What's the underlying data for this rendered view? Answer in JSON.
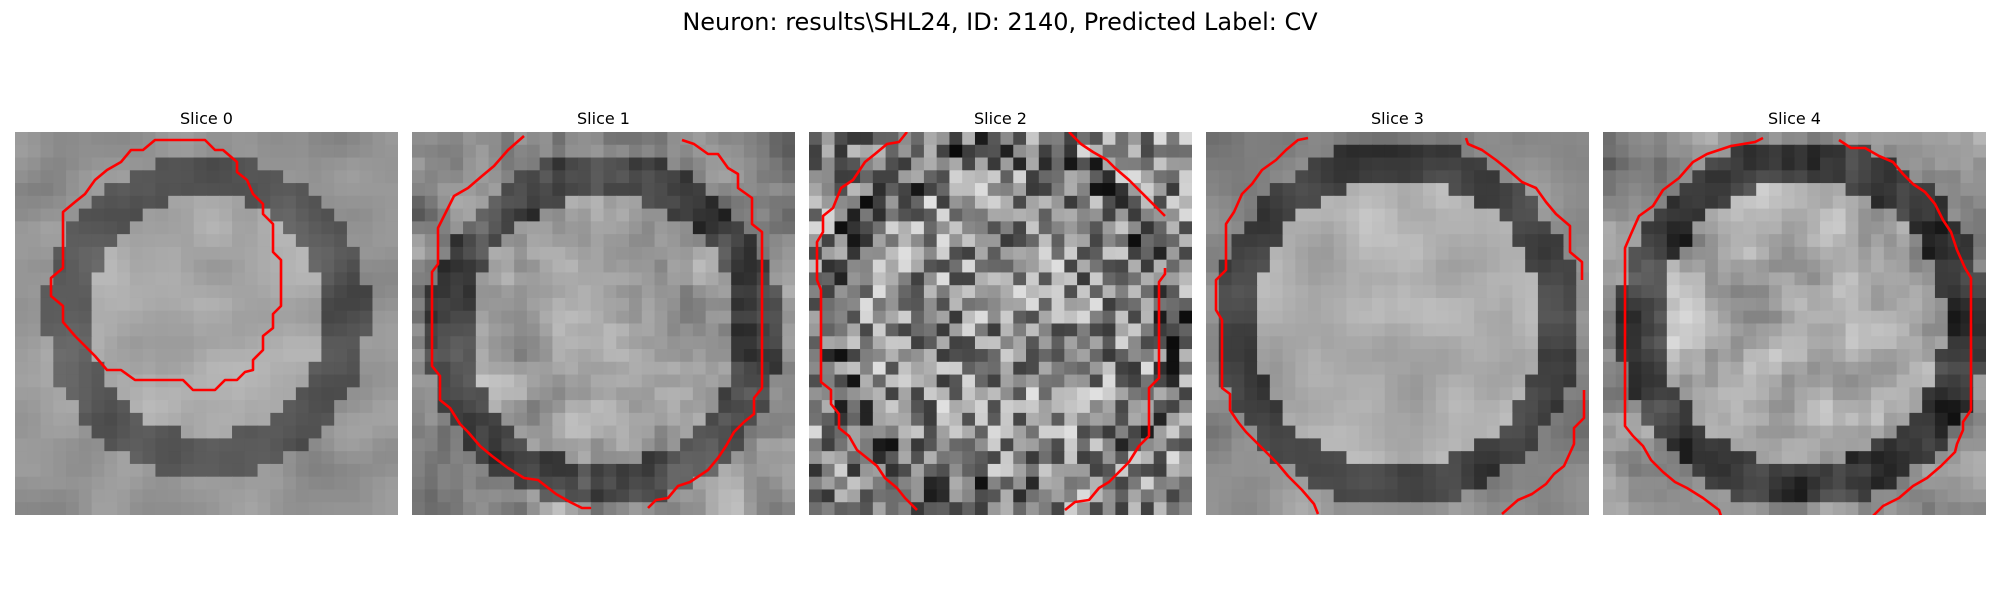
{
  "figure": {
    "title": "Neuron: results\\SHL24, ID: 2140, Predicted Label: CV"
  },
  "slices": [
    {
      "title": "Slice 0"
    },
    {
      "title": "Slice 1"
    },
    {
      "title": "Slice 2"
    },
    {
      "title": "Slice 3"
    },
    {
      "title": "Slice 4"
    }
  ],
  "colors": {
    "contour": "#ff0000",
    "background": "#ffffff"
  }
}
